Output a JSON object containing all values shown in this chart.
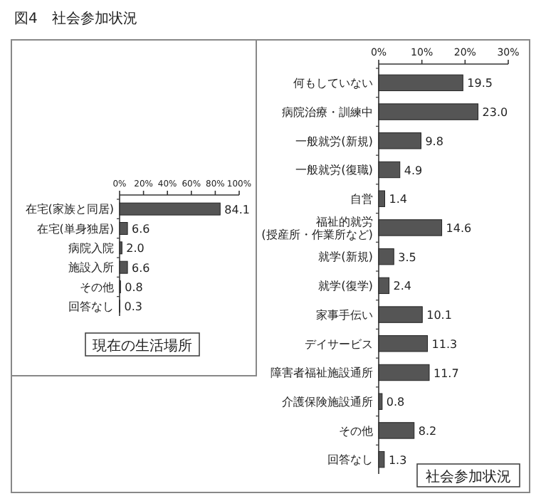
{
  "chart_data": [
    {
      "type": "bar",
      "orientation": "horizontal",
      "title": "現在の生活場所",
      "annotations": [
        "図4　社会参加状況"
      ],
      "categories": [
        "在宅(家族と同居)",
        "在宅(単身独居)",
        "病院入院",
        "施設入所",
        "その他",
        "回答なし"
      ],
      "values": [
        84.1,
        6.6,
        2.0,
        6.6,
        0.8,
        0.3
      ],
      "value_labels": [
        "84.1",
        "6.6",
        "2.0",
        "6.6",
        "0.8",
        "0.3"
      ],
      "color": "#555555",
      "xlim": [
        0,
        100
      ],
      "xticks": [
        {
          "value": 0,
          "label": "0%"
        },
        {
          "value": 20,
          "label": "20%"
        },
        {
          "value": 40,
          "label": "40%"
        },
        {
          "value": 60,
          "label": "60%"
        },
        {
          "value": 80,
          "label": "80%"
        },
        {
          "value": 100,
          "label": "100%"
        }
      ],
      "grid": false
    },
    {
      "type": "bar",
      "orientation": "horizontal",
      "title": "社会参加状況",
      "categories": [
        "何もしていない",
        "病院治療・訓練中",
        "一般就労(新規)",
        "一般就労(復職)",
        "自営",
        "福祉的就労\n(授産所・作業所など)",
        "就学(新規)",
        "就学(復学)",
        "家事手伝い",
        "デイサービス",
        "障害者福祉施設通所",
        "介護保険施設通所",
        "その他",
        "回答なし"
      ],
      "values": [
        19.5,
        23.0,
        9.8,
        4.9,
        1.4,
        14.6,
        3.5,
        2.4,
        10.1,
        11.3,
        11.7,
        0.8,
        8.2,
        1.3
      ],
      "value_labels": [
        "19.5",
        "23.0",
        "9.8",
        "4.9",
        "1.4",
        "14.6",
        "3.5",
        "2.4",
        "10.1",
        "11.3",
        "11.7",
        "0.8",
        "8.2",
        "1.3"
      ],
      "color": "#555555",
      "xlim": [
        0,
        30
      ],
      "xticks": [
        {
          "value": 0,
          "label": "0%"
        },
        {
          "value": 10,
          "label": "10%"
        },
        {
          "value": 20,
          "label": "20%"
        },
        {
          "value": 30,
          "label": "30%"
        }
      ],
      "grid": false
    }
  ]
}
